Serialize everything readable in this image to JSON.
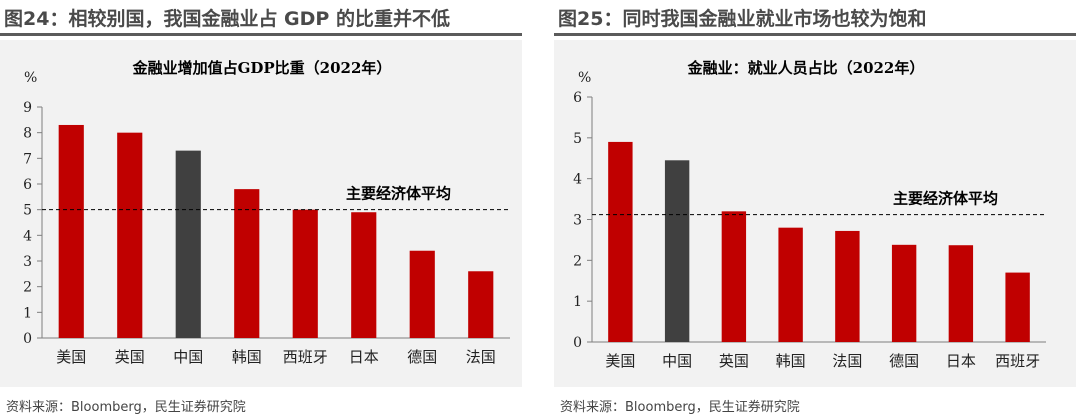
{
  "charts": [
    {
      "figure_title": "图24：相较别国，我国金融业占 GDP 的比重并不低",
      "source": "资料来源：Bloomberg，民生证券研究院"
    },
    {
      "figure_title": "图25：同时我国金融业就业市场也较为饱和",
      "source": "资料来源：Bloomberg，民生证券研究院"
    }
  ],
  "chart_data": [
    {
      "type": "bar",
      "title": "金融业增加值占GDP比重（2022年）",
      "ylabel": "%",
      "xlabel": "",
      "ylim": [
        0,
        9
      ],
      "yticks": [
        0,
        1,
        2,
        3,
        4,
        5,
        6,
        7,
        8,
        9
      ],
      "categories": [
        "美国",
        "英国",
        "中国",
        "韩国",
        "西班牙",
        "日本",
        "德国",
        "法国"
      ],
      "values": [
        8.3,
        8.0,
        7.3,
        5.8,
        5.0,
        4.9,
        3.4,
        2.6
      ],
      "highlight_category": "中国",
      "colors": {
        "bar": "#c00000",
        "highlight": "#404040",
        "reference": "#000000"
      },
      "reference_line": {
        "value": 5.0,
        "label": "主要经济体平均",
        "style": "dashed"
      },
      "grid": false
    },
    {
      "type": "bar",
      "title": "金融业：就业人员占比（2022年）",
      "ylabel": "%",
      "xlabel": "",
      "ylim": [
        0,
        6
      ],
      "yticks": [
        0,
        1,
        2,
        3,
        4,
        5,
        6
      ],
      "categories": [
        "美国",
        "中国",
        "英国",
        "韩国",
        "法国",
        "德国",
        "日本",
        "西班牙"
      ],
      "values": [
        4.9,
        4.45,
        3.2,
        2.8,
        2.72,
        2.38,
        2.37,
        1.7
      ],
      "highlight_category": "中国",
      "colors": {
        "bar": "#c00000",
        "highlight": "#404040",
        "reference": "#000000"
      },
      "reference_line": {
        "value": 3.12,
        "label": "主要经济体平均",
        "style": "dashed"
      },
      "grid": false
    }
  ]
}
